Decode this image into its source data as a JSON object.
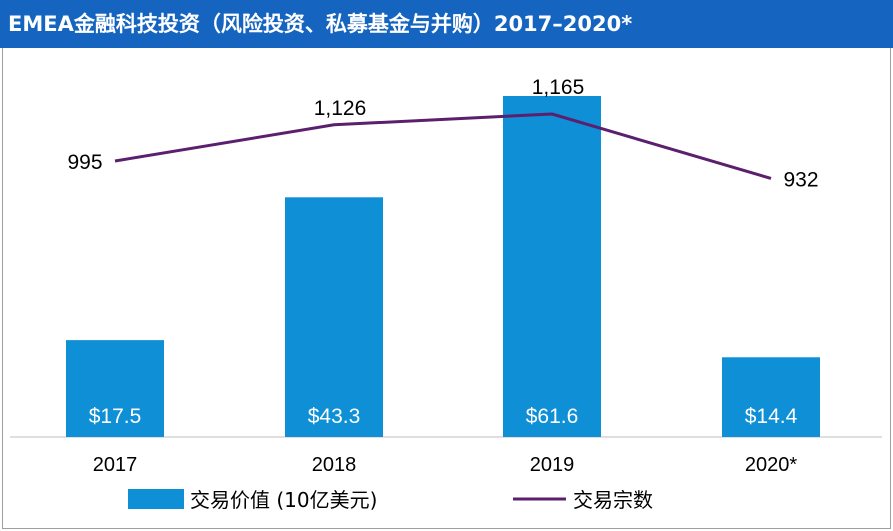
{
  "colors": {
    "bar": "#0E8FD6",
    "line": "#5B1F6E",
    "title_bg": "#1565C0"
  },
  "chart_data": {
    "type": "bar",
    "title": "EMEA金融科技投资（风险投资、私募基金与并购）2017–2020*",
    "categories": [
      "2017",
      "2018",
      "2019",
      "2020*"
    ],
    "series": [
      {
        "name": "交易价值 (10亿美元)",
        "type": "bar",
        "values": [
          17.5,
          43.3,
          61.6,
          14.4
        ],
        "labels": [
          "$17.5",
          "$43.3",
          "$61.6",
          "$14.4"
        ]
      },
      {
        "name": "交易宗数",
        "type": "line",
        "values": [
          995,
          1126,
          1165,
          932
        ],
        "labels": [
          "995",
          "1,126",
          "1,165",
          "932"
        ]
      }
    ],
    "legend": "bottom",
    "grid": false
  }
}
